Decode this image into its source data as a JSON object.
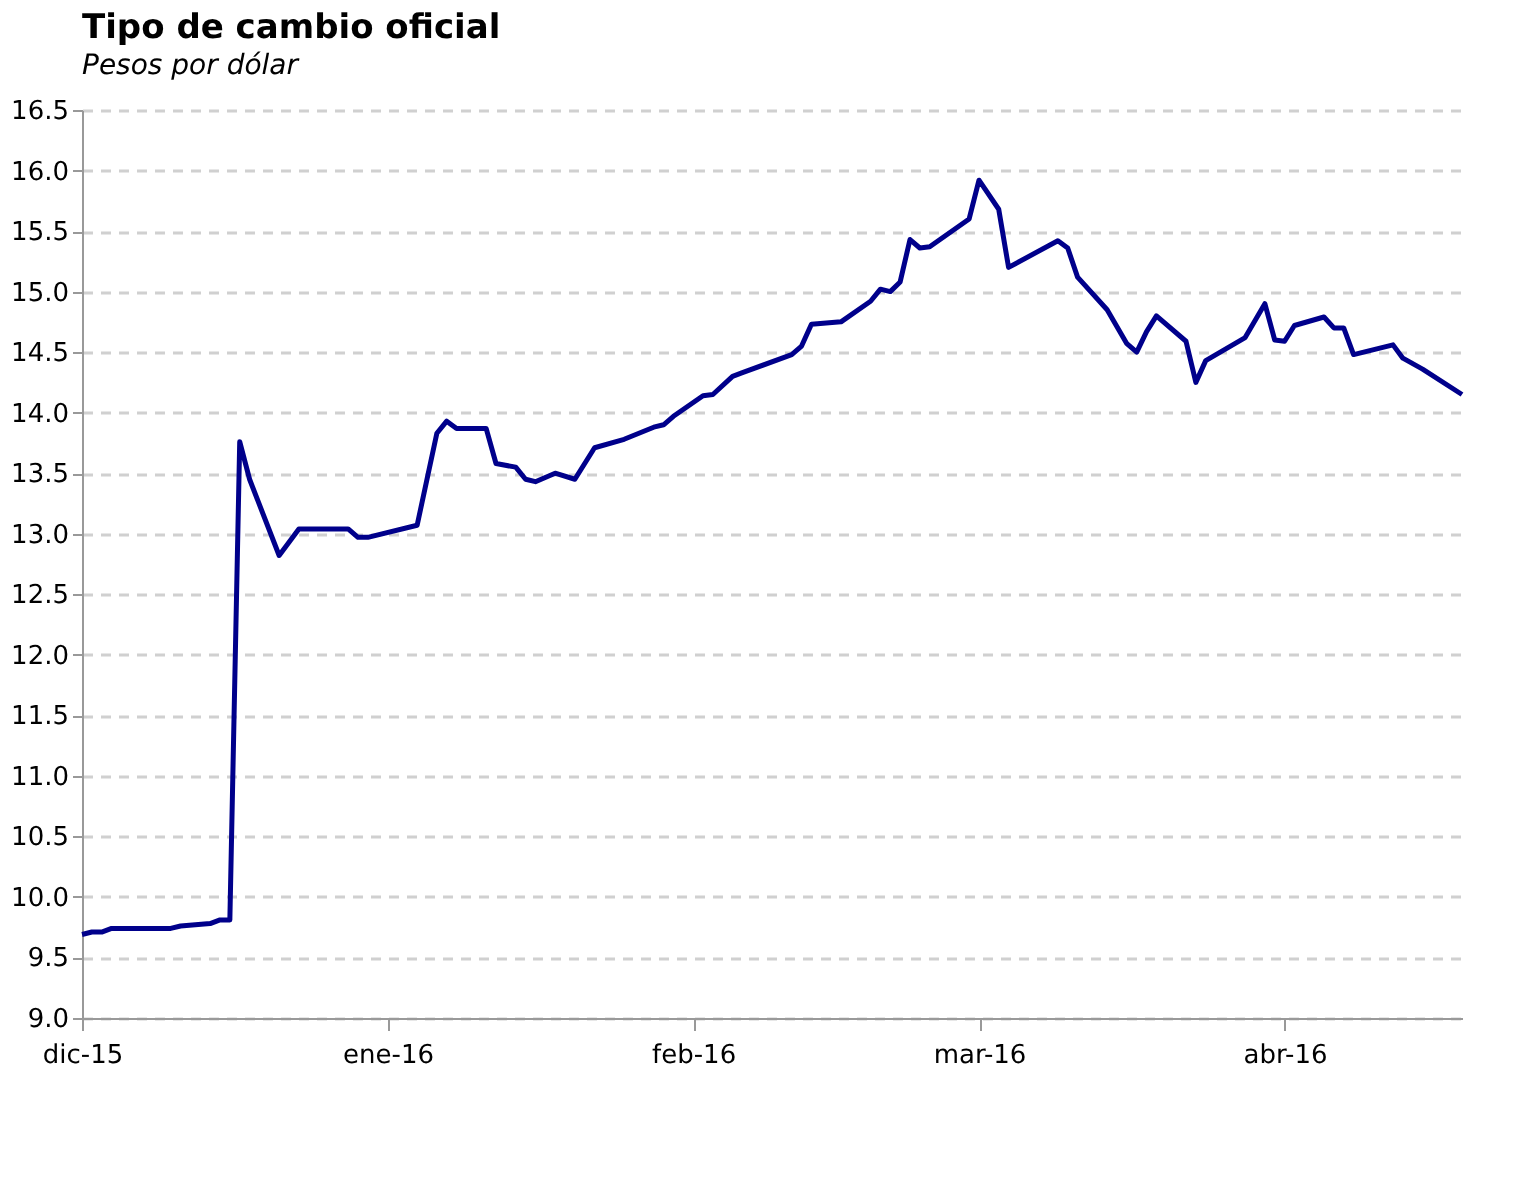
{
  "chart_data": {
    "type": "line",
    "title": "Tipo de cambio oficial",
    "subtitle": "Pesos por dólar",
    "x": [
      "2015-12-01",
      "2015-12-02",
      "2015-12-03",
      "2015-12-04",
      "2015-12-10",
      "2015-12-11",
      "2015-12-14",
      "2015-12-15",
      "2015-12-16",
      "2015-12-17",
      "2015-12-18",
      "2015-12-21",
      "2015-12-23",
      "2015-12-28",
      "2015-12-29",
      "2015-12-30",
      "2016-01-04",
      "2016-01-06",
      "2016-01-07",
      "2016-01-08",
      "2016-01-11",
      "2016-01-12",
      "2016-01-14",
      "2016-01-15",
      "2016-01-16",
      "2016-01-18",
      "2016-01-20",
      "2016-01-22",
      "2016-01-25",
      "2016-01-28",
      "2016-01-29",
      "2016-01-30",
      "2016-02-02",
      "2016-02-03",
      "2016-02-05",
      "2016-02-06",
      "2016-02-11",
      "2016-02-12",
      "2016-02-13",
      "2016-02-16",
      "2016-02-19",
      "2016-02-20",
      "2016-02-21",
      "2016-02-22",
      "2016-02-23",
      "2016-02-24",
      "2016-02-25",
      "2016-02-29",
      "2016-03-01",
      "2016-03-03",
      "2016-03-04",
      "2016-03-09",
      "2016-03-10",
      "2016-03-11",
      "2016-03-14",
      "2016-03-16",
      "2016-03-17",
      "2016-03-18",
      "2016-03-19",
      "2016-03-22",
      "2016-03-23",
      "2016-03-24",
      "2016-03-28",
      "2016-03-30",
      "2016-03-31",
      "2016-04-01",
      "2016-04-02",
      "2016-04-05",
      "2016-04-06",
      "2016-04-07",
      "2016-04-08",
      "2016-04-12",
      "2016-04-13",
      "2016-04-15",
      "2016-04-19"
    ],
    "series": [
      {
        "color": "#00008b",
        "values": [
          9.69,
          9.71,
          9.71,
          9.74,
          9.74,
          9.76,
          9.78,
          9.81,
          9.81,
          13.76,
          13.45,
          12.82,
          13.04,
          13.04,
          12.97,
          12.97,
          13.07,
          13.83,
          13.93,
          13.87,
          13.87,
          13.58,
          13.55,
          13.45,
          13.43,
          13.5,
          13.45,
          13.71,
          13.78,
          13.88,
          13.9,
          13.97,
          14.14,
          14.15,
          14.3,
          14.33,
          14.48,
          14.55,
          14.73,
          14.75,
          14.92,
          15.02,
          15.0,
          15.08,
          15.43,
          15.36,
          15.37,
          15.6,
          15.92,
          15.68,
          15.2,
          15.42,
          15.36,
          15.12,
          14.85,
          14.57,
          14.5,
          14.67,
          14.8,
          14.59,
          14.25,
          14.43,
          14.62,
          14.9,
          14.6,
          14.59,
          14.72,
          14.79,
          14.7,
          14.7,
          14.48,
          14.56,
          14.45,
          14.36,
          14.15
        ]
      }
    ],
    "xlim": [
      "2015-12-01",
      "2016-04-19"
    ],
    "xticks": [
      {
        "value": "2015-12-01",
        "label": "dic-15"
      },
      {
        "value": "2016-01-01",
        "label": "ene-16"
      },
      {
        "value": "2016-02-01",
        "label": "feb-16"
      },
      {
        "value": "2016-03-01",
        "label": "mar-16"
      },
      {
        "value": "2016-04-01",
        "label": "abr-16"
      }
    ],
    "ylim": [
      9.0,
      16.5
    ],
    "yticks": [
      {
        "value": 9.0,
        "label": "9.0"
      },
      9.5,
      {
        "value": 10.0,
        "label": "10.0"
      },
      10.5,
      {
        "value": 11.0,
        "label": "11.0"
      },
      11.5,
      {
        "value": 12.0,
        "label": "12.0"
      },
      12.5,
      {
        "value": 13.0,
        "label": "13.0"
      },
      13.5,
      {
        "value": 14.0,
        "label": "14.0"
      },
      14.5,
      {
        "value": 15.0,
        "label": "15.0"
      },
      15.5,
      {
        "value": 16.0,
        "label": "16.0"
      },
      16.5
    ],
    "grid": "y",
    "legend": false,
    "marker": "none",
    "line_style": "solid"
  }
}
